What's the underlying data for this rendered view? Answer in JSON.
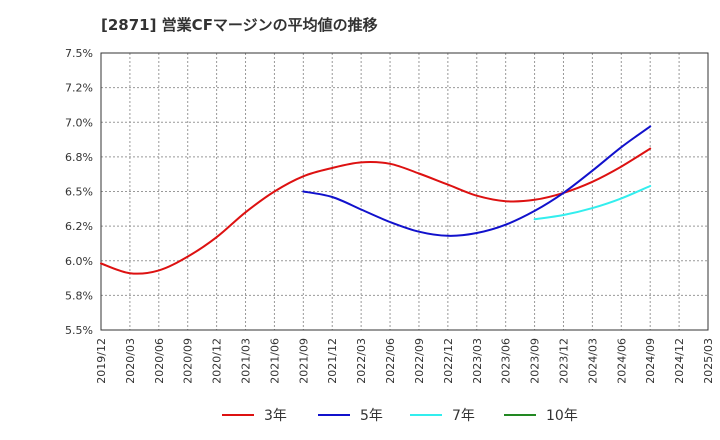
{
  "title": "[2871]  営業CFマージンの平均値の推移",
  "chart_data": {
    "type": "line",
    "title": "[2871]  営業CFマージンの平均値の推移",
    "xlabel": "",
    "ylabel": "",
    "ylim": [
      5.5,
      7.5
    ],
    "y_ticks": [
      "7.5%",
      "7.2%",
      "7.0%",
      "6.8%",
      "6.5%",
      "6.2%",
      "6.0%",
      "5.8%",
      "5.5%"
    ],
    "x_ticks": [
      "2019/12",
      "2020/03",
      "2020/06",
      "2020/09",
      "2020/12",
      "2021/03",
      "2021/06",
      "2021/09",
      "2021/12",
      "2022/03",
      "2022/06",
      "2022/09",
      "2022/12",
      "2023/03",
      "2023/06",
      "2023/09",
      "2023/12",
      "2024/03",
      "2024/06",
      "2024/09",
      "2024/12",
      "2025/03"
    ],
    "grid": true,
    "legend_position": "bottom",
    "series": [
      {
        "name": "3年",
        "color": "#dd1111",
        "x": [
          "2019/12",
          "2020/03",
          "2020/06",
          "2020/09",
          "2020/12",
          "2021/03",
          "2021/06",
          "2021/09",
          "2021/12",
          "2022/03",
          "2022/06",
          "2022/09",
          "2022/12",
          "2023/03",
          "2023/06",
          "2023/09",
          "2023/12",
          "2024/03",
          "2024/06",
          "2024/09"
        ],
        "values": [
          5.98,
          5.91,
          5.93,
          6.03,
          6.17,
          6.35,
          6.5,
          6.61,
          6.67,
          6.71,
          6.7,
          6.63,
          6.55,
          6.47,
          6.43,
          6.44,
          6.49,
          6.57,
          6.68,
          6.81
        ]
      },
      {
        "name": "5年",
        "color": "#1111cc",
        "x": [
          "2021/09",
          "2021/12",
          "2022/03",
          "2022/06",
          "2022/09",
          "2022/12",
          "2023/03",
          "2023/06",
          "2023/09",
          "2023/12",
          "2024/03",
          "2024/06",
          "2024/09"
        ],
        "values": [
          6.5,
          6.46,
          6.37,
          6.28,
          6.21,
          6.18,
          6.2,
          6.26,
          6.36,
          6.49,
          6.65,
          6.82,
          6.97
        ]
      },
      {
        "name": "7年",
        "color": "#33eeee",
        "x": [
          "2023/09",
          "2023/12",
          "2024/03",
          "2024/06",
          "2024/09"
        ],
        "values": [
          6.3,
          6.33,
          6.38,
          6.45,
          6.54
        ]
      },
      {
        "name": "10年",
        "color": "#228822",
        "x": [],
        "values": []
      }
    ]
  }
}
